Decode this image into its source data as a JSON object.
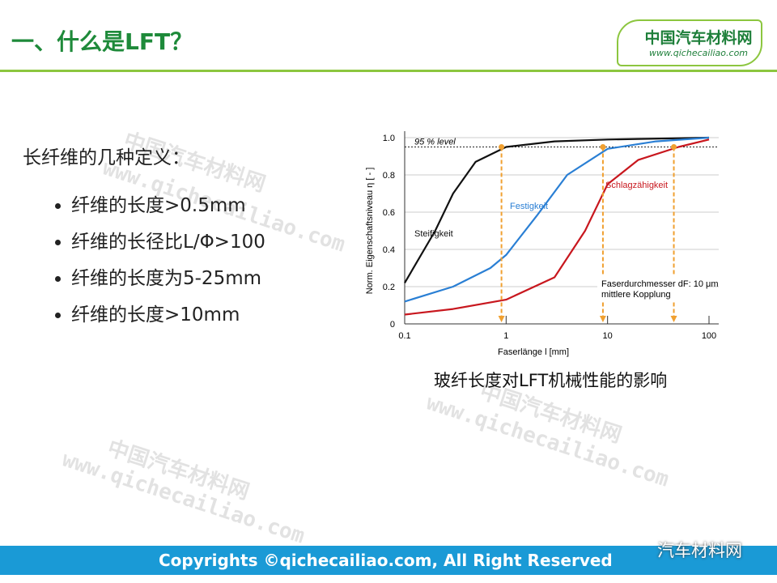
{
  "header": {
    "title": "一、什么是LFT？",
    "logo_name": "中国汽车材料网",
    "logo_url": "www.qichecailiao.com"
  },
  "body": {
    "heading": "长纤维的几种定义：",
    "bullets": [
      "纤维的长度>0.5mm",
      "纤维的长径比L/Φ>100",
      "纤维的长度为5-25mm",
      "纤维的长度>10mm"
    ]
  },
  "chart_data": {
    "type": "line",
    "x_label": "Faserlänge l   [mm]",
    "y_label": "Norm. Eigenschaftsniveau  η  [ - ]",
    "log_x": true,
    "xlim": [
      0.1,
      100
    ],
    "xticks": [
      0.1,
      1,
      10,
      100
    ],
    "ylim": [
      0,
      1
    ],
    "yticks": [
      0,
      0.2,
      0.4,
      0.6,
      0.8,
      {
        "value": 1,
        "label": "1.0"
      }
    ],
    "grid": true,
    "reference": {
      "value": 0.95,
      "label": "95 % level"
    },
    "markers_x": [
      0.9,
      9,
      45
    ],
    "marker_color": "#f0a030",
    "annotations": [
      "Faserdurchmesser dF: 10 μm",
      "mittlere Kopplung"
    ],
    "series": [
      {
        "name": "Steifigkeit",
        "color": "#111111",
        "x": [
          0.1,
          0.2,
          0.3,
          0.5,
          1,
          3,
          10,
          100
        ],
        "values": [
          0.22,
          0.5,
          0.7,
          0.87,
          0.95,
          0.98,
          0.99,
          1.0
        ]
      },
      {
        "name": "Festigkeit",
        "color": "#2a7fd4",
        "x": [
          0.1,
          0.3,
          0.7,
          1,
          2,
          4,
          10,
          30,
          100
        ],
        "values": [
          0.12,
          0.2,
          0.3,
          0.37,
          0.58,
          0.8,
          0.94,
          0.98,
          1.0
        ]
      },
      {
        "name": "Schlagzähigkeit",
        "color": "#c8171e",
        "x": [
          0.1,
          0.3,
          1,
          3,
          6,
          10,
          20,
          50,
          100
        ],
        "values": [
          0.05,
          0.08,
          0.13,
          0.25,
          0.5,
          0.75,
          0.88,
          0.95,
          0.99
        ]
      }
    ]
  },
  "caption": "玻纤长度对LFT机械性能的影响",
  "watermarks": [
    "中国汽车材料网",
    "www.qichecailiao.com"
  ],
  "footer": {
    "copyright": "Copyrights ©qichecailiao.com,  All Right Reserved",
    "wechat": "汽车材料网"
  }
}
